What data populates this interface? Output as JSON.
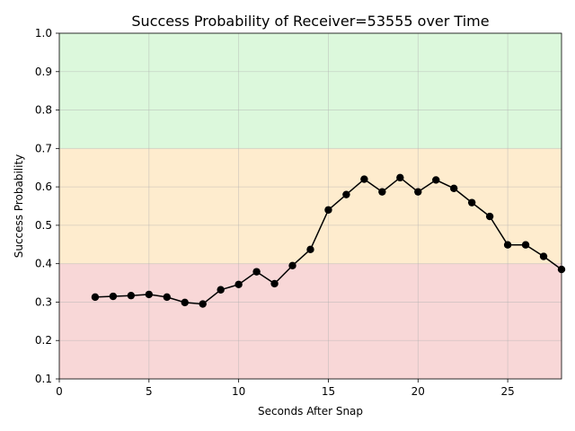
{
  "chart_data": {
    "type": "line",
    "title": "Success Probability of Receiver=53555 over Time",
    "xlabel": "Seconds After Snap",
    "ylabel": "Success Probability",
    "xlim": [
      0,
      28
    ],
    "ylim": [
      0.1,
      1.0
    ],
    "xticks": [
      0,
      5,
      10,
      15,
      20,
      25
    ],
    "yticks": [
      0.1,
      0.2,
      0.3,
      0.4,
      0.5,
      0.6,
      0.7,
      0.8,
      0.9,
      1.0
    ],
    "x_tick_labels": [
      "0",
      "5",
      "10",
      "15",
      "20",
      "25"
    ],
    "y_tick_labels": [
      "0.1",
      "0.2",
      "0.3",
      "0.4",
      "0.5",
      "0.6",
      "0.7",
      "0.8",
      "0.9",
      "1.0"
    ],
    "grid": true,
    "bands": [
      {
        "from": 0.1,
        "to": 0.4,
        "color": "#f8d7d7"
      },
      {
        "from": 0.4,
        "to": 0.7,
        "color": "#feecce"
      },
      {
        "from": 0.7,
        "to": 1.0,
        "color": "#dcf8dc"
      }
    ],
    "series": [
      {
        "color": "#000000",
        "x": [
          2,
          3,
          4,
          5,
          6,
          7,
          8,
          9,
          10,
          11,
          12,
          13,
          14,
          15,
          16,
          17,
          18,
          19,
          20,
          21,
          22,
          23,
          24,
          25,
          26,
          27,
          28
        ],
        "y": [
          0.313,
          0.315,
          0.317,
          0.32,
          0.313,
          0.299,
          0.295,
          0.332,
          0.346,
          0.379,
          0.348,
          0.395,
          0.437,
          0.54,
          0.58,
          0.62,
          0.587,
          0.624,
          0.587,
          0.618,
          0.596,
          0.559,
          0.523,
          0.449,
          0.449,
          0.419,
          0.385
        ]
      }
    ]
  }
}
